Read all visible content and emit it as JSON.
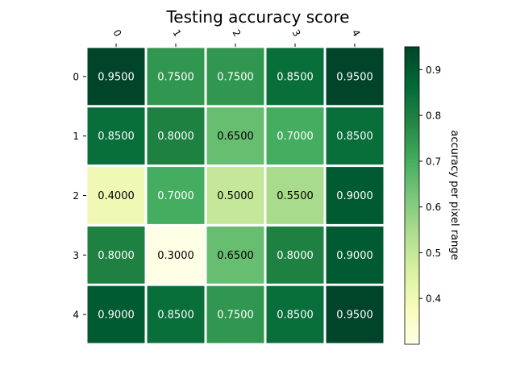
{
  "chart_data": {
    "type": "heatmap",
    "title": "Testing accuracy score",
    "x_categories": [
      "0",
      "1",
      "2",
      "3",
      "4"
    ],
    "y_categories": [
      "0",
      "1",
      "2",
      "3",
      "4"
    ],
    "values": [
      [
        0.95,
        0.75,
        0.75,
        0.85,
        0.95
      ],
      [
        0.85,
        0.8,
        0.65,
        0.7,
        0.85
      ],
      [
        0.4,
        0.7,
        0.5,
        0.55,
        0.9
      ],
      [
        0.8,
        0.3,
        0.65,
        0.8,
        0.9
      ],
      [
        0.9,
        0.85,
        0.75,
        0.85,
        0.95
      ]
    ],
    "cell_labels": [
      [
        "0.9500",
        "0.7500",
        "0.7500",
        "0.8500",
        "0.9500"
      ],
      [
        "0.8500",
        "0.8000",
        "0.6500",
        "0.7000",
        "0.8500"
      ],
      [
        "0.4000",
        "0.7000",
        "0.5000",
        "0.5500",
        "0.9000"
      ],
      [
        "0.8000",
        "0.3000",
        "0.6500",
        "0.8000",
        "0.9000"
      ],
      [
        "0.9000",
        "0.8500",
        "0.7500",
        "0.8500",
        "0.9500"
      ]
    ],
    "colormap": "YlGn",
    "colorbar": {
      "label": "accuracy per pixel range",
      "range": [
        0.3,
        0.95
      ],
      "ticks": [
        0.4,
        0.5,
        0.6,
        0.7,
        0.8,
        0.9
      ],
      "tick_labels": [
        "0.4",
        "0.5",
        "0.6",
        "0.7",
        "0.8",
        "0.9"
      ]
    },
    "x_axis_position": "top",
    "cell_gap_color": "#ffffff"
  }
}
